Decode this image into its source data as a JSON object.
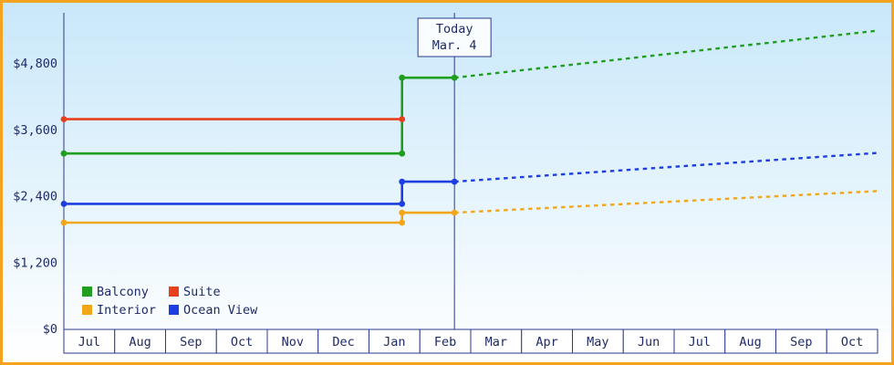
{
  "chart_data": {
    "type": "line",
    "title": "",
    "xlabel": "",
    "ylabel": "",
    "x_categories": [
      "Jul",
      "Aug",
      "Sep",
      "Oct",
      "Nov",
      "Dec",
      "Jan",
      "Feb",
      "Mar",
      "Apr",
      "May",
      "Jun",
      "Jul",
      "Aug",
      "Sep",
      "Oct"
    ],
    "y_ticks": [
      0,
      1200,
      2400,
      3600,
      4800
    ],
    "y_tick_labels": [
      "$0",
      "$1,200",
      "$2,400",
      "$3,600",
      "$4,800"
    ],
    "ylim": [
      0,
      5720
    ],
    "grid": false,
    "legend_position": "bottom-left",
    "today": {
      "label_line1": "Today",
      "label_line2": "Mar. 4",
      "x": 7.68
    },
    "series": [
      {
        "name": "Balcony",
        "color": "#1f9e1f",
        "solid": [
          [
            0,
            3180
          ],
          [
            6.65,
            3180
          ],
          [
            6.65,
            4550
          ],
          [
            7.68,
            4550
          ]
        ],
        "dashed": [
          [
            7.68,
            4550
          ],
          [
            16,
            5400
          ]
        ],
        "markers": [
          [
            0,
            3180
          ],
          [
            6.65,
            3180
          ],
          [
            6.65,
            4550
          ],
          [
            7.68,
            4550
          ]
        ]
      },
      {
        "name": "Suite",
        "color": "#e8401c",
        "solid": [
          [
            0,
            3800
          ],
          [
            6.65,
            3800
          ]
        ],
        "dashed": [],
        "markers": [
          [
            0,
            3800
          ],
          [
            6.65,
            3800
          ]
        ]
      },
      {
        "name": "Interior",
        "color": "#f2a71b",
        "solid": [
          [
            0,
            1930
          ],
          [
            6.65,
            1930
          ],
          [
            6.65,
            2110
          ],
          [
            7.68,
            2110
          ]
        ],
        "dashed": [
          [
            7.68,
            2110
          ],
          [
            16,
            2500
          ]
        ],
        "markers": [
          [
            0,
            1930
          ],
          [
            6.65,
            1930
          ],
          [
            6.65,
            2110
          ],
          [
            7.68,
            2110
          ]
        ]
      },
      {
        "name": "Ocean View",
        "color": "#1d3ee0",
        "solid": [
          [
            0,
            2270
          ],
          [
            6.65,
            2270
          ],
          [
            6.65,
            2670
          ],
          [
            7.68,
            2670
          ]
        ],
        "dashed": [
          [
            7.68,
            2670
          ],
          [
            16,
            3190
          ]
        ],
        "markers": [
          [
            0,
            2270
          ],
          [
            6.65,
            2270
          ],
          [
            6.65,
            2670
          ],
          [
            7.68,
            2670
          ]
        ]
      }
    ],
    "legend": [
      {
        "name": "Balcony",
        "color": "#1f9e1f"
      },
      {
        "name": "Suite",
        "color": "#e8401c"
      },
      {
        "name": "Interior",
        "color": "#f2a71b"
      },
      {
        "name": "Ocean View",
        "color": "#1d3ee0"
      }
    ]
  },
  "colors": {
    "frame_border": "#f5a31f",
    "axis": "#2b3a8c",
    "text": "#1e2b66",
    "background_top": "#c9e8fa",
    "background_bottom": "#ffffff",
    "month_box_fill": "#ffffff",
    "today_box_fill": "#fafdff"
  }
}
